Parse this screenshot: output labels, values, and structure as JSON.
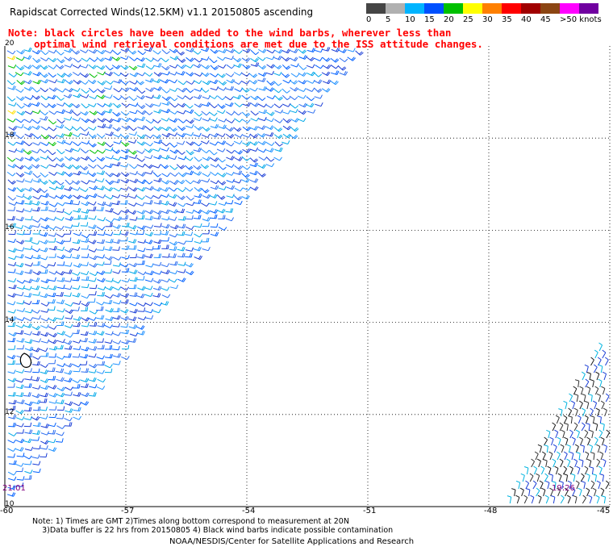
{
  "title": "Rapidscat Corrected Winds(12.5KM) v1.1 20150805 ascending",
  "legend": {
    "labels": [
      "0",
      "5",
      "10",
      "15",
      "20",
      "25",
      "30",
      "35",
      "40",
      "45",
      ">50 knots"
    ],
    "colors": [
      "#454545",
      "#b0b0b0",
      "#00b4ff",
      "#0050ff",
      "#00c000",
      "#ffff00",
      "#ff8000",
      "#ff0000",
      "#a00000",
      "#8b4513",
      "#ff00ff",
      "#7000a0"
    ]
  },
  "note": {
    "line1": "Note: black circles have been added to the wind barbs, wherever less than",
    "line2": "optimal wind retrieval conditions are met due to the ISS attitude changes."
  },
  "axes": {
    "x_ticks": [
      "-60",
      "-57",
      "-54",
      "-51",
      "-48",
      "-45"
    ],
    "y_ticks": [
      "20",
      "18",
      "16",
      "14",
      "12",
      "10"
    ]
  },
  "times": {
    "left": "21:01",
    "right": "19:26"
  },
  "footer": {
    "line1": "Note: 1) Times are GMT 2)Times along bottom correspond to measurement at 20N",
    "line2": "3)Data buffer is 22 hrs from 20150805 4) Black wind barbs indicate possible contamination",
    "credit": "NOAA/NESDIS/Center for Satellite Applications and Research"
  },
  "map": {
    "lon_range": [
      -60,
      -45
    ],
    "lat_range": [
      10,
      20
    ],
    "grid": "dotted",
    "wind_speed_units": "knots",
    "swath_left_colors": [
      "#1a3dd6",
      "#2a6cf0",
      "#1e90ff",
      "#00a8e8",
      "#0060ff"
    ],
    "swath_right_colors": [
      "#1a1a1a",
      "#333333",
      "#00b4e0",
      "#1a3dd6"
    ],
    "highlight_colors": [
      "#00c000",
      "#ffe000"
    ]
  }
}
